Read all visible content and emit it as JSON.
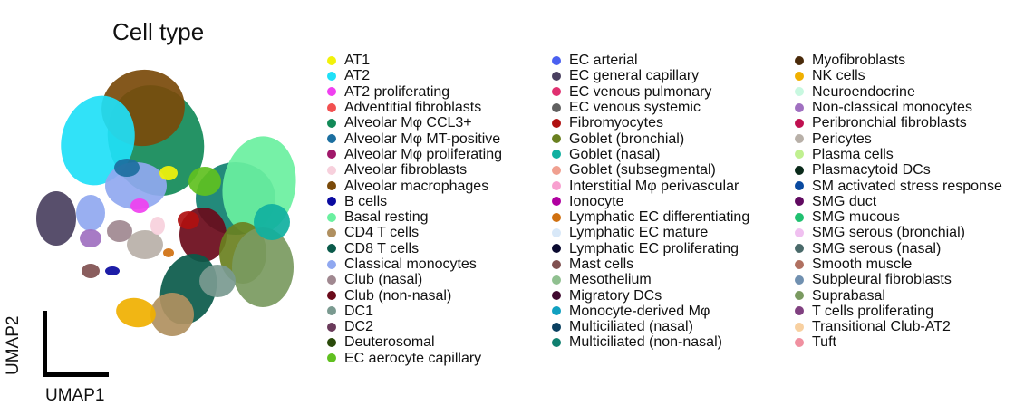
{
  "chart_data": {
    "type": "scatter",
    "title": "Cell type",
    "xlabel": "UMAP1",
    "ylabel": "UMAP2",
    "legend_position": "right",
    "legend_columns": [
      [
        {
          "name": "AT1",
          "color": "#f2f20a"
        },
        {
          "name": "AT2",
          "color": "#1fe0f7"
        },
        {
          "name": "AT2 proliferating",
          "color": "#f040f0"
        },
        {
          "name": "Adventitial fibroblasts",
          "color": "#f25050"
        },
        {
          "name": "Alveolar Mφ CCL3+",
          "color": "#128a58"
        },
        {
          "name": "Alveolar Mφ MT-positive",
          "color": "#1c6fa0"
        },
        {
          "name": "Alveolar Mφ proliferating",
          "color": "#a0186a"
        },
        {
          "name": "Alveolar fibroblasts",
          "color": "#f7d0dc"
        },
        {
          "name": "Alveolar macrophages",
          "color": "#7a4a0a"
        },
        {
          "name": "B cells",
          "color": "#0a0aa0"
        },
        {
          "name": "Basal resting",
          "color": "#6af0a0"
        },
        {
          "name": "CD4 T cells",
          "color": "#b09060"
        },
        {
          "name": "CD8 T cells",
          "color": "#0a5a4a"
        },
        {
          "name": "Classical monocytes",
          "color": "#90a8f0"
        },
        {
          "name": "Club (nasal)",
          "color": "#a08890"
        },
        {
          "name": "Club (non-nasal)",
          "color": "#6a0a1a"
        },
        {
          "name": "DC1",
          "color": "#7a9a90"
        },
        {
          "name": "DC2",
          "color": "#6a3a5a"
        },
        {
          "name": "Deuterosomal",
          "color": "#2a4a0a"
        },
        {
          "name": "EC aerocyte capillary",
          "color": "#60c020"
        }
      ],
      [
        {
          "name": "EC arterial",
          "color": "#4a60f0"
        },
        {
          "name": "EC general capillary",
          "color": "#4a4060"
        },
        {
          "name": "EC venous pulmonary",
          "color": "#e03070"
        },
        {
          "name": "EC venous systemic",
          "color": "#606060"
        },
        {
          "name": "Fibromyocytes",
          "color": "#b01010"
        },
        {
          "name": "Goblet (bronchial)",
          "color": "#6a8020"
        },
        {
          "name": "Goblet (nasal)",
          "color": "#10b0a0"
        },
        {
          "name": "Goblet (subsegmental)",
          "color": "#f0a090"
        },
        {
          "name": "Interstitial Mφ perivascular",
          "color": "#f8a0d0"
        },
        {
          "name": "Ionocyte",
          "color": "#b000a0"
        },
        {
          "name": "Lymphatic EC differentiating",
          "color": "#d07010"
        },
        {
          "name": "Lymphatic EC mature",
          "color": "#d8e8f8"
        },
        {
          "name": "Lymphatic EC proliferating",
          "color": "#0a0a30"
        },
        {
          "name": "Mast cells",
          "color": "#805050"
        },
        {
          "name": "Mesothelium",
          "color": "#90c090"
        },
        {
          "name": "Migratory DCs",
          "color": "#400a30"
        },
        {
          "name": "Monocyte-derived Mφ",
          "color": "#10a0c0"
        },
        {
          "name": "Multiciliated (nasal)",
          "color": "#0a4060"
        },
        {
          "name": "Multiciliated (non-nasal)",
          "color": "#108070"
        }
      ],
      [
        {
          "name": "Myofibroblasts",
          "color": "#4a2a0a"
        },
        {
          "name": "NK cells",
          "color": "#f0b000"
        },
        {
          "name": "Neuroendocrine",
          "color": "#c8f8e0"
        },
        {
          "name": "Non-classical monocytes",
          "color": "#a070c0"
        },
        {
          "name": "Peribronchial fibroblasts",
          "color": "#c01050"
        },
        {
          "name": "Pericytes",
          "color": "#b8b0a8"
        },
        {
          "name": "Plasma cells",
          "color": "#c0f090"
        },
        {
          "name": "Plasmacytoid DCs",
          "color": "#0a2a1a"
        },
        {
          "name": "SM activated stress response",
          "color": "#0a4aa0"
        },
        {
          "name": "SMG duct",
          "color": "#600a60"
        },
        {
          "name": "SMG mucous",
          "color": "#20c070"
        },
        {
          "name": "SMG serous (bronchial)",
          "color": "#f0c0f0"
        },
        {
          "name": "SMG serous (nasal)",
          "color": "#4a6a6a"
        },
        {
          "name": "Smooth muscle",
          "color": "#b07060"
        },
        {
          "name": "Subpleural fibroblasts",
          "color": "#7090b0"
        },
        {
          "name": "Suprabasal",
          "color": "#7a9a60"
        },
        {
          "name": "T cells proliferating",
          "color": "#804080"
        },
        {
          "name": "Transitional Club-AT2",
          "color": "#f8d0a0"
        },
        {
          "name": "Tuft",
          "color": "#f090a0"
        }
      ]
    ]
  }
}
